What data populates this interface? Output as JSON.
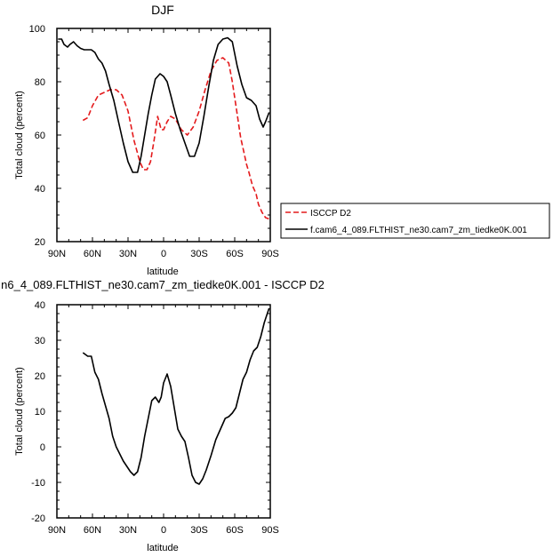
{
  "chart_data": [
    {
      "type": "line",
      "title": "DJF",
      "xlabel": "latitude",
      "ylabel": "Total cloud (percent)",
      "xlim": [
        90,
        -90
      ],
      "ylim": [
        20,
        100
      ],
      "xticks": [
        90,
        60,
        30,
        0,
        -30,
        -60,
        -90
      ],
      "xtick_labels": [
        "90N",
        "60N",
        "30N",
        "0",
        "30S",
        "60S",
        "90S"
      ],
      "yticks": [
        20,
        40,
        60,
        80,
        100
      ],
      "ytick_labels": [
        "20",
        "40",
        "60",
        "80",
        "100"
      ],
      "grid": false,
      "legend_position": "right, outside plot",
      "series": [
        {
          "name": "ISCCP D2",
          "color": "#e41a1c",
          "dash": "dashed",
          "x": [
            68,
            64,
            60,
            55,
            50,
            45,
            40,
            35,
            30,
            25,
            20,
            17,
            14,
            11,
            8,
            5,
            2,
            0,
            -3,
            -6,
            -10,
            -15,
            -20,
            -25,
            -30,
            -35,
            -40,
            -45,
            -50,
            -55,
            -58,
            -62,
            -65,
            -68,
            -70,
            -72,
            -75,
            -78,
            -80,
            -83,
            -86,
            -89
          ],
          "y": [
            65.5,
            66.5,
            71,
            75,
            76,
            77,
            77,
            75,
            69,
            58,
            50,
            47,
            47,
            50,
            58,
            67,
            62,
            62,
            65,
            67,
            66,
            62,
            60,
            63,
            69,
            77,
            84,
            88,
            89,
            87,
            80,
            68,
            59,
            53,
            49,
            46,
            41,
            38,
            34,
            31,
            29,
            28.5
          ]
        },
        {
          "name": "f.cam6_4_089.FLTHIST_ne30.cam7_zm_tiedke0K.001",
          "color": "#000000",
          "dash": "solid",
          "x": [
            89,
            86,
            84,
            81,
            79,
            76,
            73,
            70,
            67,
            64,
            61,
            58,
            55,
            52,
            49,
            46,
            42,
            38,
            34,
            30,
            26,
            22,
            19,
            16,
            13,
            10,
            7,
            3,
            0,
            -3,
            -6,
            -10,
            -14,
            -18,
            -22,
            -26,
            -30,
            -34,
            -38,
            -42,
            -46,
            -50,
            -54,
            -58,
            -62,
            -66,
            -70,
            -74,
            -78,
            -81,
            -84,
            -86,
            -89
          ],
          "y": [
            96,
            96,
            94,
            93,
            94,
            95,
            93.5,
            92.5,
            92,
            92,
            92,
            91,
            88.5,
            87,
            84,
            79,
            73,
            65,
            57,
            50,
            46,
            46,
            52,
            60,
            68,
            75,
            81,
            83,
            82,
            80,
            75,
            68,
            62,
            57,
            52,
            52,
            57,
            67,
            78,
            88,
            94,
            96,
            96.5,
            95,
            86,
            79,
            74,
            73,
            71,
            66,
            63,
            65,
            68.5
          ]
        }
      ]
    },
    {
      "type": "line",
      "title": "n6_4_089.FLTHIST_ne30.cam7_zm_tiedke0K.001 - ISCCP D2",
      "xlabel": "latitude",
      "ylabel": "Total cloud (percent)",
      "xlim": [
        90,
        -90
      ],
      "ylim": [
        -20,
        40
      ],
      "xticks": [
        90,
        60,
        30,
        0,
        -30,
        -60,
        -90
      ],
      "xtick_labels": [
        "90N",
        "60N",
        "30N",
        "0",
        "30S",
        "60S",
        "90S"
      ],
      "yticks": [
        -20,
        -10,
        0,
        10,
        20,
        30,
        40
      ],
      "ytick_labels": [
        "-20",
        "-10",
        "0",
        "10",
        "20",
        "30",
        "40"
      ],
      "grid": false,
      "series": [
        {
          "color": "#000000",
          "dash": "solid",
          "x": [
            68,
            64,
            61,
            58,
            55,
            52,
            49,
            46,
            43,
            40,
            37,
            34,
            31,
            28,
            25,
            22,
            19,
            16,
            13,
            10,
            7,
            4,
            2,
            0,
            -3,
            -6,
            -9,
            -12,
            -15,
            -18,
            -21,
            -24,
            -27,
            -30,
            -33,
            -36,
            -40,
            -44,
            -48,
            -52,
            -55,
            -58,
            -61,
            -64,
            -67,
            -70,
            -73,
            -76,
            -79,
            -82,
            -85,
            -88,
            -89
          ],
          "y": [
            26.5,
            25.5,
            25.5,
            21,
            19,
            15,
            11.5,
            8,
            3,
            0,
            -2,
            -4,
            -5.5,
            -7,
            -8,
            -7,
            -3,
            3,
            8,
            13,
            14,
            12.5,
            14,
            18,
            20.5,
            17,
            11,
            5,
            3,
            1.5,
            -3,
            -8,
            -10,
            -10.5,
            -9,
            -6.5,
            -2.5,
            2,
            5,
            8,
            8.5,
            9.5,
            11,
            15,
            19,
            21,
            24.5,
            27,
            28,
            31,
            35,
            38,
            39
          ]
        }
      ]
    }
  ]
}
